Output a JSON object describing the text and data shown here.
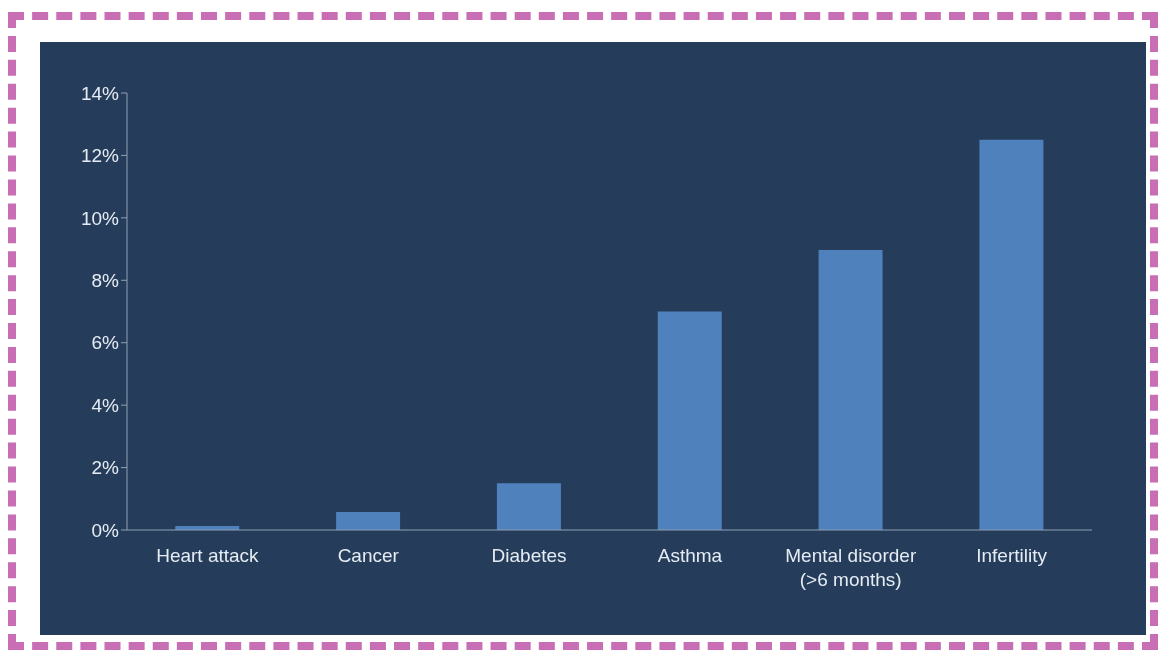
{
  "chart_data": {
    "type": "bar",
    "categories": [
      "Heart attack",
      "Cancer",
      "Diabetes",
      "Asthma",
      "Mental disorder (>6 months)",
      "Infertility"
    ],
    "values": [
      0.13,
      0.58,
      1.5,
      7,
      8.97,
      12.5
    ],
    "color": "#4f81bd",
    "ylim": [
      0,
      14
    ],
    "yticks": [
      {
        "value": 0,
        "label": "0%"
      },
      {
        "value": 2,
        "label": "2%"
      },
      {
        "value": 4,
        "label": "4%"
      },
      {
        "value": 6,
        "label": "6%"
      },
      {
        "value": 8,
        "label": "8%"
      },
      {
        "value": 10,
        "label": "10%"
      },
      {
        "value": 12,
        "label": "12%"
      },
      {
        "value": 14,
        "label": "14%"
      }
    ],
    "grid": false,
    "legend": false
  }
}
